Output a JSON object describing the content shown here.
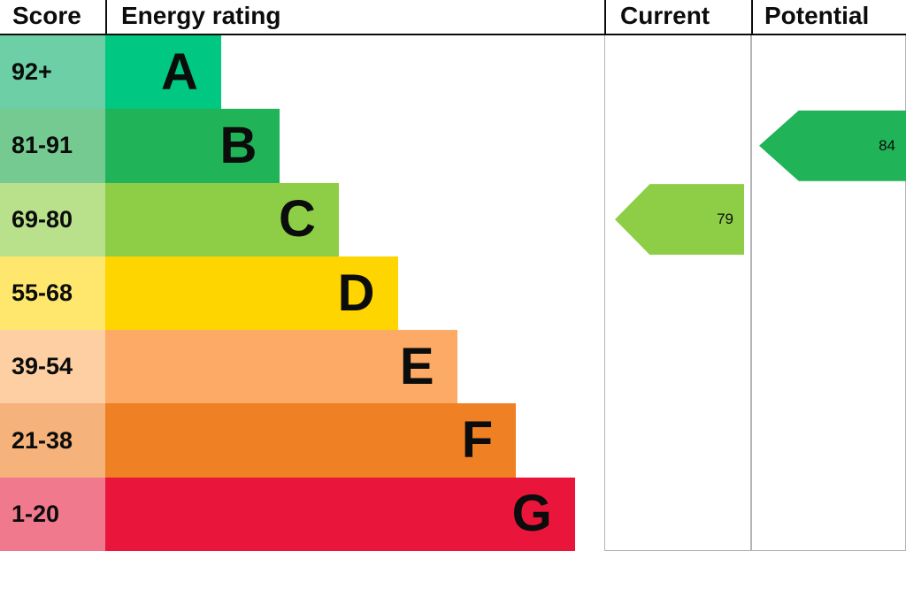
{
  "header": {
    "score": "Score",
    "rating": "Energy rating",
    "current": "Current",
    "potential": "Potential"
  },
  "chart_data": {
    "type": "bar",
    "title": "Energy rating",
    "bands": [
      {
        "letter": "A",
        "range": "92+",
        "color": "#00c781",
        "score_color": "#6ccfa5",
        "width_pct": 23.2
      },
      {
        "letter": "B",
        "range": "81-91",
        "color": "#21b357",
        "score_color": "#74ca90",
        "width_pct": 35.0
      },
      {
        "letter": "C",
        "range": "69-80",
        "color": "#8dce46",
        "score_color": "#b9e18c",
        "width_pct": 46.8
      },
      {
        "letter": "D",
        "range": "55-68",
        "color": "#ffd500",
        "score_color": "#ffe76e",
        "width_pct": 58.6
      },
      {
        "letter": "E",
        "range": "39-54",
        "color": "#fcaa65",
        "score_color": "#fdcfa3",
        "width_pct": 70.5
      },
      {
        "letter": "F",
        "range": "21-38",
        "color": "#ef8023",
        "score_color": "#f5b27b",
        "width_pct": 82.3
      },
      {
        "letter": "G",
        "range": "1-20",
        "color": "#e9153b",
        "score_color": "#f1798e",
        "width_pct": 94.1
      }
    ],
    "current": {
      "value": "79",
      "band": "C",
      "color": "#8dce46"
    },
    "potential": {
      "value": "84",
      "band": "B",
      "color": "#21b357"
    }
  }
}
